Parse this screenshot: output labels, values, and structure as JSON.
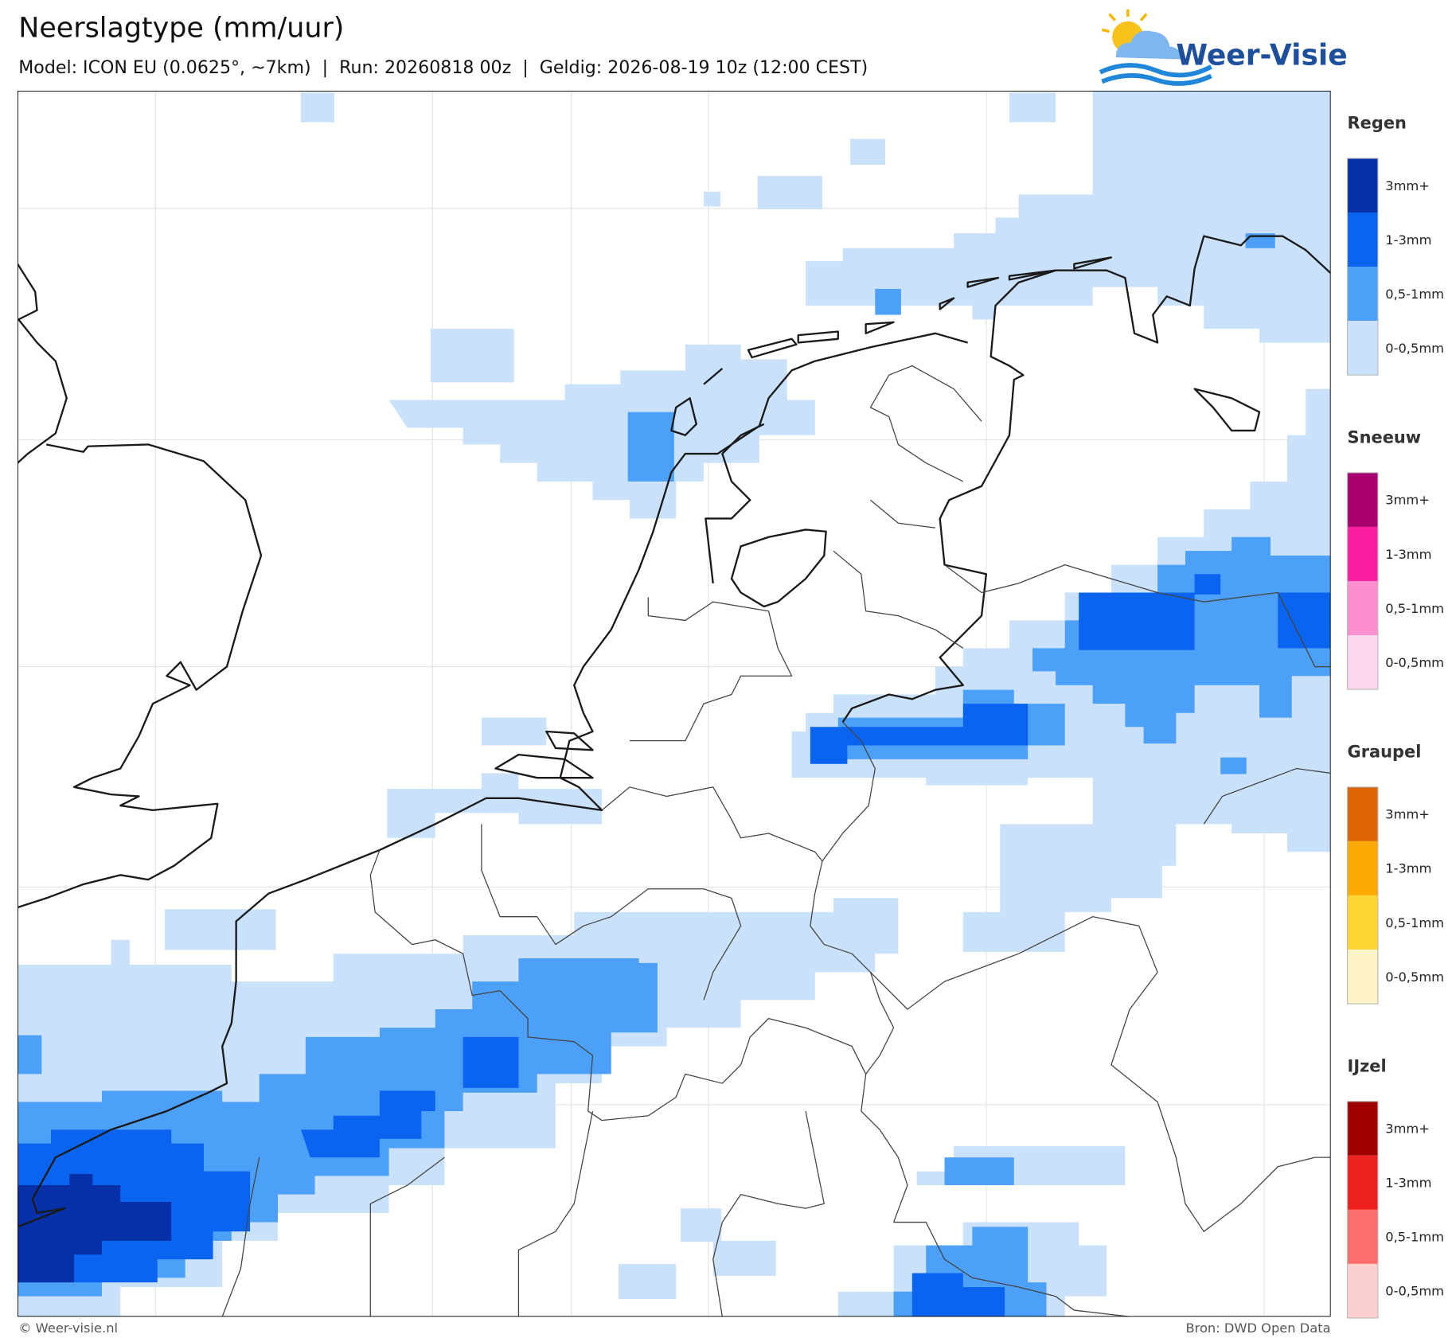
{
  "header": {
    "title": "Neerslagtype (mm/uur)",
    "subtitle": "Model: ICON EU (0.0625°, ~7km)  |  Run: 20260818 00z  |  Geldig: 2026-08-19 10z (12:00 CEST)"
  },
  "logo": {
    "text": "Weer-Visie"
  },
  "legend": {
    "groups": [
      {
        "title": "Regen",
        "items": [
          {
            "label": "3mm+",
            "color": "#0530a8"
          },
          {
            "label": "1-3mm",
            "color": "#0a64f0"
          },
          {
            "label": "0,5-1mm",
            "color": "#4da0f7"
          },
          {
            "label": "0-0,5mm",
            "color": "#c9e1fb"
          }
        ]
      },
      {
        "title": "Sneeuw",
        "items": [
          {
            "label": "3mm+",
            "color": "#a8006e"
          },
          {
            "label": "1-3mm",
            "color": "#fa1fa0"
          },
          {
            "label": "0,5-1mm",
            "color": "#fb8fcf"
          },
          {
            "label": "0-0,5mm",
            "color": "#fdd7ee"
          }
        ]
      },
      {
        "title": "Graupel",
        "items": [
          {
            "label": "3mm+",
            "color": "#dc6402"
          },
          {
            "label": "1-3mm",
            "color": "#fda903"
          },
          {
            "label": "0,5-1mm",
            "color": "#fdd634"
          },
          {
            "label": "0-0,5mm",
            "color": "#fef3c6"
          }
        ]
      },
      {
        "title": "IJzel",
        "items": [
          {
            "label": "3mm+",
            "color": "#a00000"
          },
          {
            "label": "1-3mm",
            "color": "#ee2020"
          },
          {
            "label": "0,5-1mm",
            "color": "#fa6e6e"
          },
          {
            "label": "0-0,5mm",
            "color": "#fdd0d0"
          }
        ]
      }
    ]
  },
  "footer": {
    "credit": "© Weer-visie.nl",
    "source": "Bron: DWD Open Data"
  }
}
